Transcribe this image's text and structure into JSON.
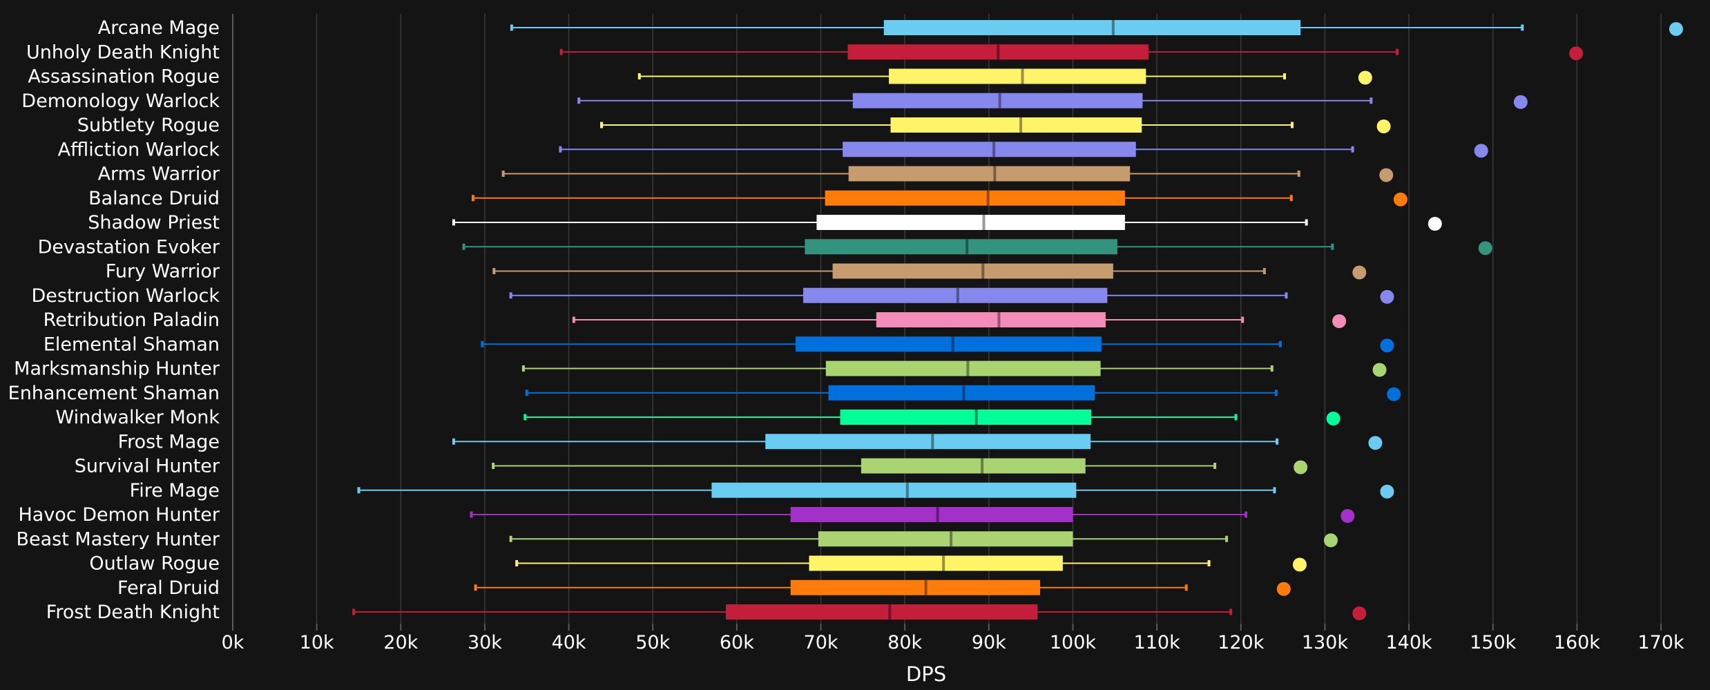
{
  "chart_data": {
    "type": "boxplot",
    "title": "",
    "xlabel": "DPS",
    "ylabel": "",
    "xlim": [
      0,
      170000
    ],
    "x_ticks": [
      {
        "value": 0,
        "label": "0k"
      },
      {
        "value": 10000,
        "label": "10k"
      },
      {
        "value": 20000,
        "label": "20k"
      },
      {
        "value": 30000,
        "label": "30k"
      },
      {
        "value": 40000,
        "label": "40k"
      },
      {
        "value": 50000,
        "label": "50k"
      },
      {
        "value": 60000,
        "label": "60k"
      },
      {
        "value": 70000,
        "label": "70k"
      },
      {
        "value": 80000,
        "label": "80k"
      },
      {
        "value": 90000,
        "label": "90k"
      },
      {
        "value": 100000,
        "label": "100k"
      },
      {
        "value": 110000,
        "label": "110k"
      },
      {
        "value": 120000,
        "label": "120k"
      },
      {
        "value": 130000,
        "label": "130k"
      },
      {
        "value": 140000,
        "label": "140k"
      },
      {
        "value": 150000,
        "label": "150k"
      },
      {
        "value": 160000,
        "label": "160k"
      },
      {
        "value": 170000,
        "label": "170k"
      }
    ],
    "grid": "vertical",
    "series": [
      {
        "name": "Arcane Mage",
        "color": "#69ccf0",
        "min": 33200,
        "q1": 77500,
        "median": 104800,
        "q3": 127100,
        "max": 153500,
        "outlier": 171800
      },
      {
        "name": "Unholy Death Knight",
        "color": "#c41e3a",
        "min": 39100,
        "q1": 73200,
        "median": 91100,
        "q3": 109000,
        "max": 138600,
        "outlier": 159900
      },
      {
        "name": "Assassination Rogue",
        "color": "#fff468",
        "min": 48400,
        "q1": 78100,
        "median": 94000,
        "q3": 108700,
        "max": 125200,
        "outlier": 134800
      },
      {
        "name": "Demonology Warlock",
        "color": "#8788ee",
        "min": 41200,
        "q1": 73800,
        "median": 91300,
        "q3": 108300,
        "max": 135500,
        "outlier": 153300
      },
      {
        "name": "Subtlety Rogue",
        "color": "#fff468",
        "min": 43900,
        "q1": 78300,
        "median": 93800,
        "q3": 108200,
        "max": 126100,
        "outlier": 137000
      },
      {
        "name": "Affliction Warlock",
        "color": "#8788ee",
        "min": 39000,
        "q1": 72600,
        "median": 90600,
        "q3": 107500,
        "max": 133300,
        "outlier": 148600
      },
      {
        "name": "Arms Warrior",
        "color": "#c69b6d",
        "min": 32200,
        "q1": 73300,
        "median": 90700,
        "q3": 106800,
        "max": 126900,
        "outlier": 137300
      },
      {
        "name": "Balance Druid",
        "color": "#ff7c0a",
        "min": 28600,
        "q1": 70500,
        "median": 89900,
        "q3": 106200,
        "max": 126000,
        "outlier": 139000
      },
      {
        "name": "Shadow Priest",
        "color": "#ffffff",
        "min": 26300,
        "q1": 69500,
        "median": 89400,
        "q3": 106200,
        "max": 127800,
        "outlier": 143100
      },
      {
        "name": "Devastation Evoker",
        "color": "#33937f",
        "min": 27500,
        "q1": 68100,
        "median": 87400,
        "q3": 105300,
        "max": 130900,
        "outlier": 149100
      },
      {
        "name": "Fury Warrior",
        "color": "#c69b6d",
        "min": 31100,
        "q1": 71400,
        "median": 89300,
        "q3": 104800,
        "max": 122800,
        "outlier": 134100
      },
      {
        "name": "Destruction Warlock",
        "color": "#8788ee",
        "min": 33100,
        "q1": 67900,
        "median": 86300,
        "q3": 104100,
        "max": 125400,
        "outlier": 137400
      },
      {
        "name": "Retribution Paladin",
        "color": "#f48cba",
        "min": 40600,
        "q1": 76600,
        "median": 91200,
        "q3": 103900,
        "max": 120200,
        "outlier": 131700
      },
      {
        "name": "Elemental Shaman",
        "color": "#0070dd",
        "min": 29700,
        "q1": 67000,
        "median": 85700,
        "q3": 103400,
        "max": 124700,
        "outlier": 137400
      },
      {
        "name": "Marksmanship Hunter",
        "color": "#aad372",
        "min": 34600,
        "q1": 70600,
        "median": 87500,
        "q3": 103300,
        "max": 123700,
        "outlier": 136500
      },
      {
        "name": "Enhancement Shaman",
        "color": "#0070dd",
        "min": 35000,
        "q1": 70900,
        "median": 87000,
        "q3": 102600,
        "max": 124200,
        "outlier": 138200
      },
      {
        "name": "Windwalker Monk",
        "color": "#00ff98",
        "min": 34800,
        "q1": 72300,
        "median": 88500,
        "q3": 102200,
        "max": 119400,
        "outlier": 131000
      },
      {
        "name": "Frost Mage",
        "color": "#69ccf0",
        "min": 26300,
        "q1": 63400,
        "median": 83300,
        "q3": 102100,
        "max": 124300,
        "outlier": 136000
      },
      {
        "name": "Survival Hunter",
        "color": "#aad372",
        "min": 31000,
        "q1": 74800,
        "median": 89200,
        "q3": 101500,
        "max": 116900,
        "outlier": 127100
      },
      {
        "name": "Fire Mage",
        "color": "#69ccf0",
        "min": 15000,
        "q1": 57000,
        "median": 80300,
        "q3": 100400,
        "max": 124000,
        "outlier": 137400
      },
      {
        "name": "Havoc Demon Hunter",
        "color": "#a330c9",
        "min": 28400,
        "q1": 66400,
        "median": 83900,
        "q3": 100000,
        "max": 120600,
        "outlier": 132700
      },
      {
        "name": "Beast Mastery Hunter",
        "color": "#aad372",
        "min": 33100,
        "q1": 69700,
        "median": 85500,
        "q3": 100000,
        "max": 118300,
        "outlier": 130700
      },
      {
        "name": "Outlaw Rogue",
        "color": "#fff468",
        "min": 33800,
        "q1": 68600,
        "median": 84600,
        "q3": 98800,
        "max": 116200,
        "outlier": 127000
      },
      {
        "name": "Feral Druid",
        "color": "#ff7c0a",
        "min": 28900,
        "q1": 66400,
        "median": 82500,
        "q3": 96100,
        "max": 113500,
        "outlier": 125100
      },
      {
        "name": "Frost Death Knight",
        "color": "#c41e3a",
        "min": 14400,
        "q1": 58700,
        "median": 78200,
        "q3": 95800,
        "max": 118800,
        "outlier": 134100
      }
    ]
  }
}
